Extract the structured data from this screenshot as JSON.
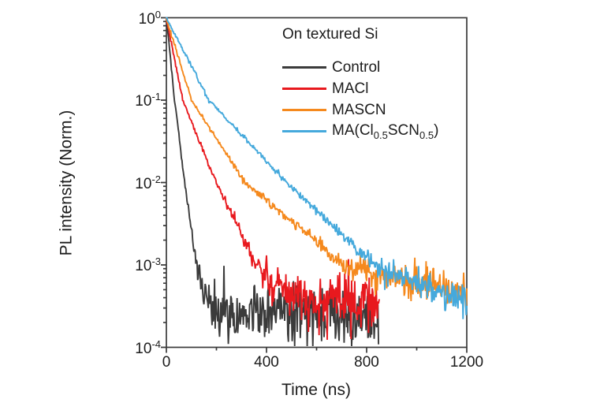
{
  "figure": {
    "background": "#ffffff",
    "axis_color": "#3a3a3a",
    "text_color": "#1c1c1c"
  },
  "chart_data": {
    "type": "line",
    "title": "",
    "annotation": "On textured Si",
    "xlabel": "Time (ns)",
    "ylabel": "PL intensity (Norm.)",
    "x_range_ns": [
      0,
      1200
    ],
    "x_ticks": [
      0,
      400,
      800,
      1200
    ],
    "x_tick_labels": [
      "0",
      "400",
      "800",
      "1200"
    ],
    "x_minor_ticks": [
      200,
      600,
      1000
    ],
    "y_scale": "log",
    "y_range": [
      0.0001,
      1
    ],
    "y_tick_exponents": [
      0,
      -1,
      -2,
      -3,
      -4
    ],
    "y_tick_labels": [
      {
        "base": "10",
        "exp": "0"
      },
      {
        "base": "10",
        "exp": "-1"
      },
      {
        "base": "10",
        "exp": "-2"
      },
      {
        "base": "10",
        "exp": "-3"
      },
      {
        "base": "10",
        "exp": "-4"
      }
    ],
    "grid": false,
    "legend_position": "upper-right",
    "series": [
      {
        "name": "Control",
        "label_parts": [
          {
            "t": "Control"
          }
        ],
        "color": "#3b3b3b",
        "end_ns": 848,
        "noise_ref": 0.00026,
        "seed": 101,
        "anchors_t": [
          0,
          33,
          73,
          120,
          150,
          185,
          848
        ],
        "anchors_v": [
          1,
          0.1,
          0.01,
          0.001,
          0.00045,
          0.00028,
          0.000245
        ]
      },
      {
        "name": "MACl",
        "label_parts": [
          {
            "t": "MACl"
          }
        ],
        "color": "#e8191e",
        "end_ns": 852,
        "noise_ref": 0.00033,
        "seed": 202,
        "anchors_t": [
          0,
          65,
          200,
          340,
          420,
          480,
          852
        ],
        "anchors_v": [
          1,
          0.1,
          0.01,
          0.0013,
          0.00055,
          0.0004,
          0.00035
        ]
      },
      {
        "name": "MASCN",
        "label_parts": [
          {
            "t": "MASCN"
          }
        ],
        "color": "#f5891d",
        "end_ns": 1200,
        "noise_ref": 0.00024,
        "seed": 303,
        "anchors_t": [
          0,
          100,
          315,
          710,
          950,
          1200
        ],
        "anchors_v": [
          1,
          0.1,
          0.01,
          0.001,
          0.00063,
          0.00049
        ]
      },
      {
        "name": "MA(Cl0.5SCN0.5)",
        "label_parts": [
          {
            "t": "MA(Cl"
          },
          {
            "t": "0.5",
            "sub": true
          },
          {
            "t": "SCN"
          },
          {
            "t": "0.5",
            "sub": true
          },
          {
            "t": ")"
          }
        ],
        "color": "#45a9dc",
        "end_ns": 1200,
        "noise_ref": 0.00022,
        "seed": 404,
        "anchors_t": [
          0,
          170,
          480,
          830,
          1030,
          1200
        ],
        "anchors_v": [
          1,
          0.1,
          0.01,
          0.001,
          0.00056,
          0.00034
        ]
      }
    ]
  }
}
